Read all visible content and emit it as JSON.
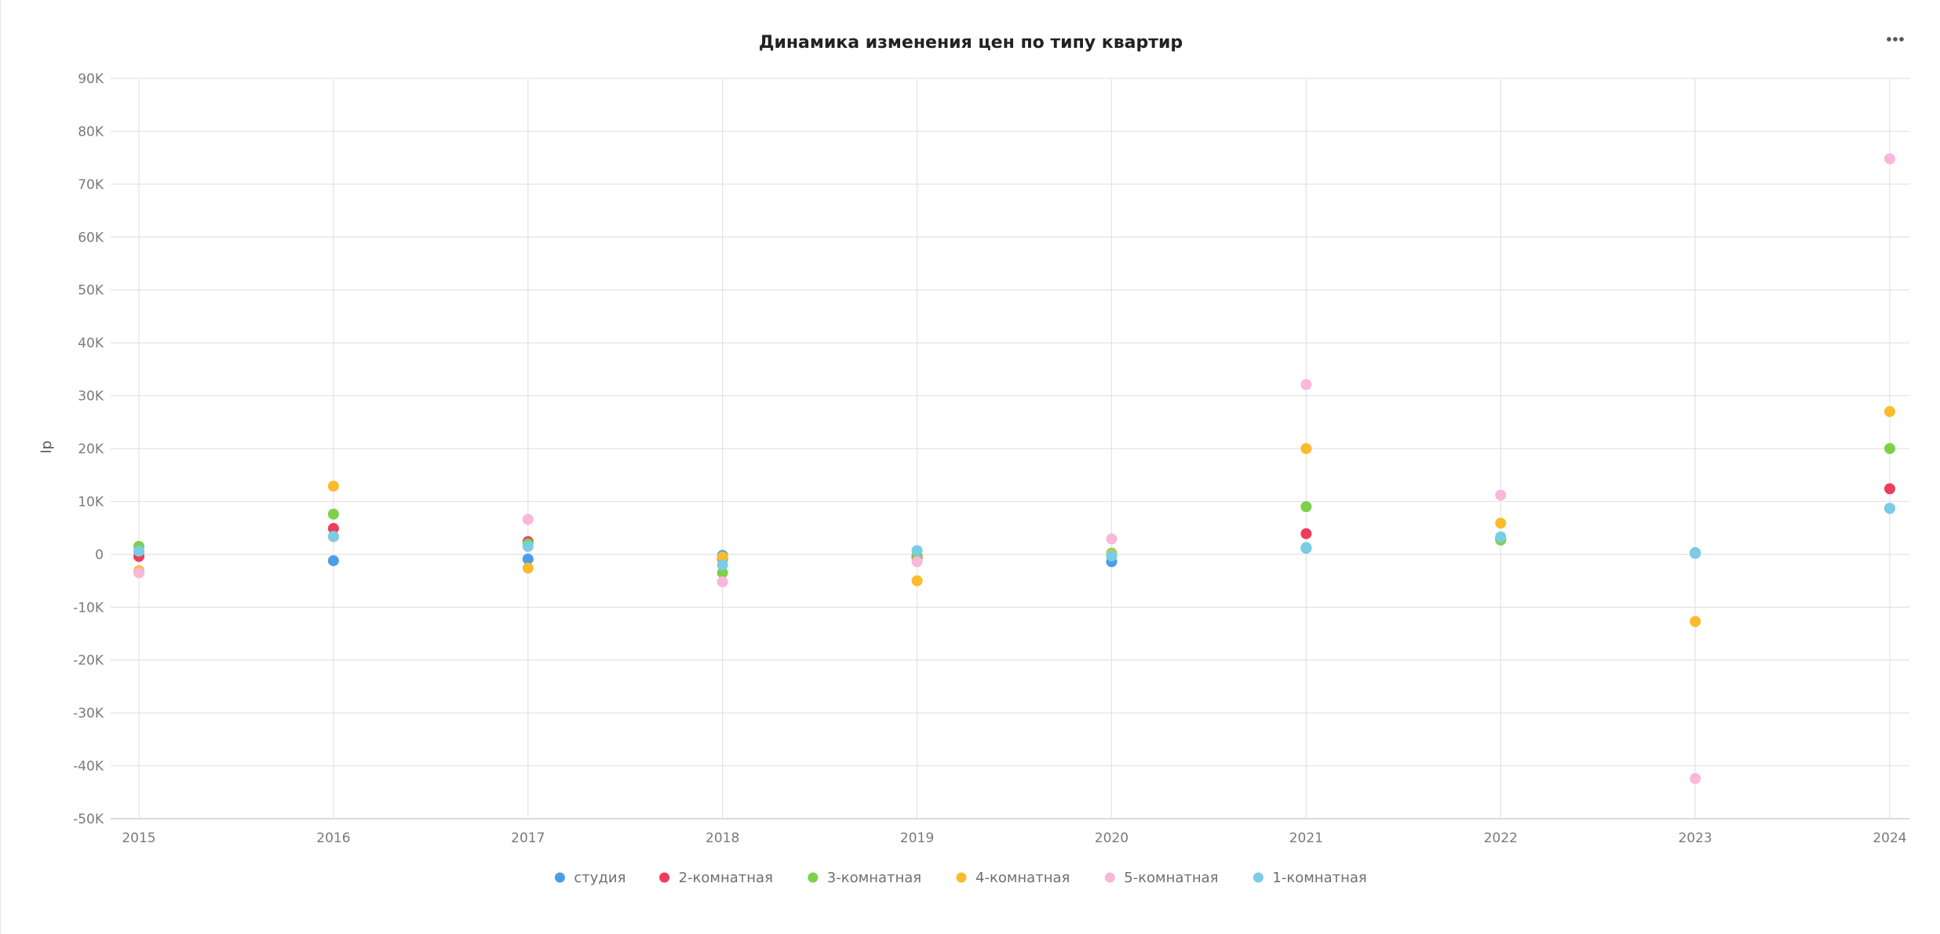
{
  "chart_data": {
    "type": "scatter",
    "title": "Динамика изменения цен по типу квартир",
    "ylabel": "lp",
    "xlabel": "",
    "x": [
      "2015",
      "2016",
      "2017",
      "2018",
      "2019",
      "2020",
      "2021",
      "2022",
      "2023",
      "2024"
    ],
    "ylim": [
      -50000,
      90000
    ],
    "y_ticks": [
      -50000,
      -40000,
      -30000,
      -20000,
      -10000,
      0,
      10000,
      20000,
      30000,
      40000,
      50000,
      60000,
      70000,
      80000,
      90000
    ],
    "y_tick_labels": [
      "-50K",
      "-40K",
      "-30K",
      "-20K",
      "-10K",
      "0",
      "10K",
      "20K",
      "30K",
      "40K",
      "50K",
      "60K",
      "70K",
      "80K",
      "90K"
    ],
    "grid": true,
    "legend_position": "bottom-center",
    "series": [
      {
        "name": "студия",
        "color": "#4b9ee8",
        "values": [
          500,
          -1200,
          -900,
          -200,
          -300,
          -1400,
          1200,
          3000,
          300,
          8700
        ]
      },
      {
        "name": "2-комнатная",
        "color": "#ef3c5c",
        "values": [
          -400,
          4900,
          2400,
          -800,
          -600,
          -200,
          3900,
          2900,
          200,
          12400
        ]
      },
      {
        "name": "3-комнатная",
        "color": "#7ed04a",
        "values": [
          1500,
          7600,
          2000,
          -3500,
          -200,
          200,
          9000,
          2700,
          200,
          20000
        ]
      },
      {
        "name": "4-комнатная",
        "color": "#fbbb2c",
        "values": [
          -3100,
          12900,
          -2600,
          -500,
          -5000,
          -100,
          20000,
          5900,
          -12700,
          27000
        ]
      },
      {
        "name": "5-комнатная",
        "color": "#f9b7da",
        "values": [
          -3500,
          3300,
          6600,
          -5200,
          -1400,
          2900,
          32100,
          11200,
          -42400,
          74800
        ]
      },
      {
        "name": "1-комнатная",
        "color": "#79cde5",
        "values": [
          600,
          3400,
          1500,
          -2000,
          700,
          -300,
          1300,
          3300,
          200,
          8700
        ]
      }
    ]
  },
  "menu_icon": "more-horizontal-icon"
}
